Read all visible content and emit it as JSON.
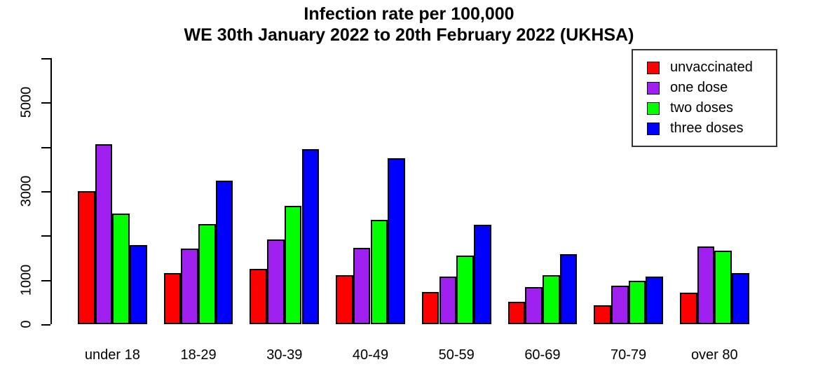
{
  "title": "Infection rate per 100,000",
  "subtitle": "WE 30th January 2022 to 20th February 2022 (UKHSA)",
  "chart_data": {
    "type": "bar",
    "title": "Infection rate per 100,000",
    "subtitle": "WE 30th January 2022 to 20th February 2022 (UKHSA)",
    "categories": [
      "under 18",
      "18-29",
      "30-39",
      "40-49",
      "50-59",
      "60-69",
      "70-79",
      "over 80"
    ],
    "series": [
      {
        "name": "unvaccinated",
        "color": "#FF0000",
        "values": [
          3000,
          1160,
          1240,
          1100,
          730,
          510,
          430,
          710
        ]
      },
      {
        "name": "one dose",
        "color": "#A020F0",
        "values": [
          4060,
          1710,
          1910,
          1720,
          1070,
          830,
          870,
          1750
        ]
      },
      {
        "name": "two doses",
        "color": "#00FF00",
        "values": [
          2500,
          2260,
          2670,
          2360,
          1540,
          1110,
          980,
          1660
        ]
      },
      {
        "name": "three doses",
        "color": "#0000FF",
        "values": [
          1790,
          3240,
          3940,
          3740,
          2240,
          1580,
          1070,
          1150
        ]
      }
    ],
    "xlabel": "",
    "ylabel": "",
    "ylim": [
      0,
      6000
    ],
    "yticks": [
      0,
      1000,
      2000,
      3000,
      4000,
      5000,
      6000
    ],
    "ytick_labels_shown": [
      0,
      1000,
      3000,
      5000
    ],
    "grid": false,
    "legend_position": "top-right",
    "bar_border_color": "#000000",
    "background_color": "#FFFFFF"
  },
  "legend": {
    "items": [
      {
        "label": "unvaccinated",
        "color": "#FF0000"
      },
      {
        "label": "one dose",
        "color": "#A020F0"
      },
      {
        "label": "two doses",
        "color": "#00FF00"
      },
      {
        "label": "three doses",
        "color": "#0000FF"
      }
    ]
  }
}
